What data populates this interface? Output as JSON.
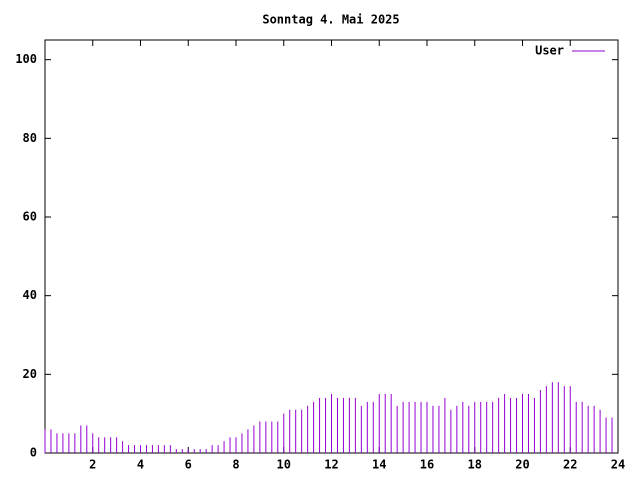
{
  "chart_data": {
    "type": "impulses",
    "title": "Sonntag 4. Mai 2025",
    "x": [
      0,
      0.25,
      0.5,
      0.75,
      1,
      1.25,
      1.5,
      1.75,
      2,
      2.25,
      2.5,
      2.75,
      3,
      3.25,
      3.5,
      3.75,
      4,
      4.25,
      4.5,
      4.75,
      5,
      5.25,
      5.5,
      5.75,
      6,
      6.25,
      6.5,
      6.75,
      7,
      7.25,
      7.5,
      7.75,
      8,
      8.25,
      8.5,
      8.75,
      9,
      9.25,
      9.5,
      9.75,
      10,
      10.25,
      10.5,
      10.75,
      11,
      11.25,
      11.5,
      11.75,
      12,
      12.25,
      12.5,
      12.75,
      13,
      13.25,
      13.5,
      13.75,
      14,
      14.25,
      14.5,
      14.75,
      15,
      15.25,
      15.5,
      15.75,
      16,
      16.25,
      16.5,
      16.75,
      17,
      17.25,
      17.5,
      17.75,
      18,
      18.25,
      18.5,
      18.75,
      19,
      19.25,
      19.5,
      19.75,
      20,
      20.25,
      20.5,
      20.75,
      21,
      21.25,
      21.5,
      21.75,
      22,
      22.25,
      22.5,
      22.75,
      23,
      23.25,
      23.5,
      23.75
    ],
    "series": [
      {
        "name": "User",
        "color": "#9400d3",
        "values": [
          6,
          6,
          5,
          5,
          5,
          5,
          7,
          7,
          5,
          4,
          4,
          4,
          4,
          3,
          2,
          2,
          2,
          2,
          2,
          2,
          2,
          2,
          1,
          1,
          1,
          1,
          1,
          1,
          2,
          2,
          3,
          4,
          4,
          5,
          6,
          7,
          8,
          8,
          8,
          8,
          10,
          11,
          11,
          11,
          12,
          13,
          14,
          14,
          15,
          14,
          14,
          14,
          14,
          12,
          13,
          13,
          15,
          15,
          15,
          12,
          13,
          13,
          13,
          13,
          13,
          12,
          12,
          14,
          11,
          12,
          13,
          12,
          13,
          13,
          13,
          13,
          14,
          15,
          14,
          14,
          15,
          15,
          14,
          16,
          17,
          18,
          18,
          17,
          17,
          13,
          13,
          12,
          12,
          11,
          9,
          9
        ]
      }
    ],
    "xlim": [
      0,
      24
    ],
    "xticks": [
      2,
      4,
      6,
      8,
      10,
      12,
      14,
      16,
      18,
      20,
      22,
      24
    ],
    "ylim": [
      0,
      105
    ],
    "yticks": [
      0,
      20,
      40,
      60,
      80,
      100
    ],
    "legend": "top-right"
  }
}
